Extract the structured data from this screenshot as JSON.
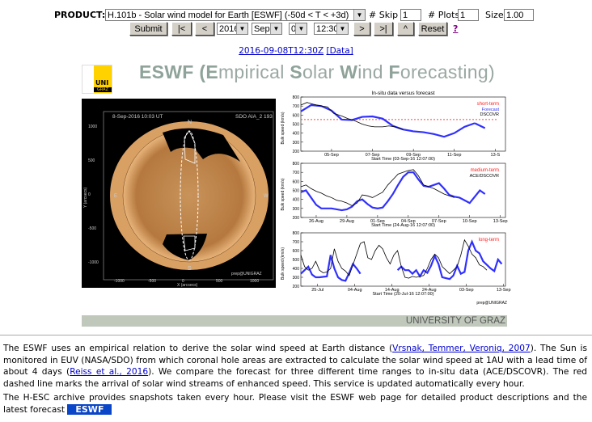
{
  "form": {
    "product_label": "PRODUCT:",
    "product_value": "H.101b - Solar wind model for Earth [ESWF] (-50d < T < +3d)",
    "skip_label": "# Skip",
    "skip_value": "1",
    "plots_label": "# Plots",
    "plots_value": "1",
    "size_label": "Size",
    "size_value": "1.00",
    "submit": "Submit",
    "first": "|<",
    "prev": "<",
    "year": "2016",
    "month": "Sep",
    "day": "08",
    "time": "12:30",
    "next": ">",
    "last": ">|",
    "up": "^",
    "reset": "Reset",
    "help": "?"
  },
  "date_link": "2016-09-08T12:30Z",
  "data_link": "[Data]",
  "header": {
    "logo_top": "UNI",
    "logo_bottom": "GRAZ",
    "title_parts": [
      "E",
      "SWF (",
      "E",
      "mpirical ",
      "S",
      "olar ",
      "W",
      "ind ",
      "F",
      "orecasting)"
    ]
  },
  "sun": {
    "timestamp": "8-Sep-2016 10:03 UT",
    "instrument": "SDO AIA_2 193",
    "north": "N",
    "south": "S",
    "east": "E",
    "west": "W",
    "credit": "prep@UNIGRAZ",
    "xlabel": "X (arcsecs)",
    "ylabel": "Y (arcsecs)",
    "yticks": [
      "1000",
      "500",
      "0",
      "-500",
      "-1000"
    ],
    "xticks": [
      "-1000",
      "-500",
      "0",
      "500",
      "1000"
    ]
  },
  "chart_data": [
    {
      "type": "line",
      "title": "In-situ data versus forecast",
      "label": "short-term",
      "legend": [
        "Forecast",
        "DSCOVR"
      ],
      "xlabel": "Start Time (03-Sep-16 12:07:00)",
      "ylabel": "Bulk speed (km/s)",
      "ylim": [
        200,
        800
      ],
      "xlim": [
        0,
        10
      ],
      "yticks": [
        "800",
        "700",
        "600",
        "500",
        "400",
        "300",
        "200"
      ],
      "xticks": [
        {
          "t": 1.5,
          "label": "05-Sep"
        },
        {
          "t": 3.5,
          "label": "07-Sep"
        },
        {
          "t": 5.5,
          "label": "09-Sep"
        },
        {
          "t": 7.5,
          "label": "11-Sep"
        },
        {
          "t": 9.5,
          "label": "13-S"
        }
      ],
      "threshold": 550,
      "series": [
        {
          "name": "Forecast",
          "color": "#3030ff",
          "x": [
            0,
            0.5,
            1,
            1.5,
            2,
            2.5,
            3,
            3.5,
            4,
            4.5,
            5,
            5.5,
            6,
            6.5,
            7,
            7.5,
            8,
            8.5
          ],
          "y": [
            640,
            710,
            700,
            650,
            550,
            545,
            580,
            585,
            560,
            480,
            440,
            420,
            410,
            390,
            360,
            400,
            470,
            510
          ]
        },
        {
          "name": "DSCOVR",
          "color": "#000000",
          "x": [
            0,
            0.3,
            0.6,
            1,
            1.3,
            1.6,
            2,
            2.3,
            2.6,
            3,
            3.3,
            3.6,
            4,
            4.3,
            4.6,
            5
          ],
          "y": [
            710,
            740,
            720,
            700,
            690,
            620,
            590,
            560,
            540,
            500,
            480,
            470,
            470,
            480,
            470,
            440
          ]
        }
      ],
      "extra_x": [
        8.5,
        9
      ],
      "extra_y": [
        510,
        455
      ]
    },
    {
      "type": "line",
      "label": "medium-term",
      "legend": [
        "ACE/DSCOVR"
      ],
      "xlabel": "Start Time (24-Aug-16 12:07:00)",
      "ylabel": "Bulk speed (km/s)",
      "ylim": [
        200,
        800
      ],
      "xlim": [
        0,
        20
      ],
      "yticks": [
        "800",
        "700",
        "600",
        "500",
        "400",
        "300",
        "200"
      ],
      "xticks": [
        {
          "t": 1.5,
          "label": "26-Aug"
        },
        {
          "t": 4.5,
          "label": "29-Aug"
        },
        {
          "t": 7.5,
          "label": "01-Sep"
        },
        {
          "t": 10.5,
          "label": "04-Sep"
        },
        {
          "t": 13.5,
          "label": "07-Sep"
        },
        {
          "t": 16.5,
          "label": "10-Sep"
        },
        {
          "t": 19.5,
          "label": "13-Sep"
        }
      ],
      "series": [
        {
          "name": "Forecast",
          "color": "#3030ff",
          "x": [
            0,
            0.5,
            1,
            1.5,
            2,
            3,
            4,
            4.5,
            5,
            5.5,
            6,
            6.5,
            7,
            7.5,
            8,
            8.5,
            9,
            9.5,
            10,
            10.5,
            11,
            11.5,
            12,
            12.5,
            13,
            13.5,
            14,
            14.5,
            15,
            15.5,
            16,
            16.5,
            17,
            17.5,
            18
          ],
          "y": [
            480,
            500,
            420,
            340,
            300,
            300,
            280,
            290,
            320,
            380,
            400,
            350,
            310,
            300,
            310,
            380,
            460,
            560,
            650,
            700,
            700,
            620,
            550,
            540,
            560,
            580,
            520,
            450,
            430,
            420,
            390,
            360,
            430,
            500,
            460
          ]
        },
        {
          "name": "ACE/DSCOVR",
          "color": "#000000",
          "x": [
            0,
            0.5,
            1,
            1.5,
            2,
            2.5,
            3,
            3.5,
            4,
            4.5,
            5,
            5.5,
            6,
            6.5,
            7,
            7.5,
            8,
            8.5,
            9,
            9.5,
            10,
            10.5,
            11,
            11.5,
            12,
            12.5,
            13,
            13.5,
            14,
            14.5,
            15
          ],
          "y": [
            540,
            560,
            520,
            490,
            470,
            440,
            420,
            390,
            380,
            360,
            330,
            360,
            450,
            440,
            420,
            450,
            480,
            560,
            620,
            680,
            700,
            720,
            730,
            660,
            560,
            540,
            520,
            490,
            460,
            440,
            420
          ]
        }
      ]
    },
    {
      "type": "line",
      "label": "long-term",
      "xlabel": "Start Time (20-Jul-16 12:07:00)",
      "ylabel": "Bulk speed (km/s)",
      "ylim": [
        200,
        800
      ],
      "xlim": [
        0,
        55
      ],
      "yticks": [
        "800",
        "700",
        "600",
        "500",
        "400",
        "300",
        "200"
      ],
      "xticks": [
        {
          "t": 4.5,
          "label": "25-Jul"
        },
        {
          "t": 14.5,
          "label": "04-Aug"
        },
        {
          "t": 24.5,
          "label": "14-Aug"
        },
        {
          "t": 34.5,
          "label": "24-Aug"
        },
        {
          "t": 44.5,
          "label": "03-Sep"
        },
        {
          "t": 54.5,
          "label": "13-Sep"
        }
      ],
      "credit": "prep@UNIGRAZ",
      "series": [
        {
          "name": "Forecast",
          "color": "#3030ff",
          "x": [
            0,
            2,
            3,
            4,
            5,
            7,
            8,
            9,
            10,
            11,
            12,
            13,
            14,
            15,
            16
          ],
          "y": [
            340,
            420,
            330,
            300,
            300,
            310,
            550,
            400,
            300,
            270,
            260,
            350,
            450,
            400,
            340
          ]
        },
        {
          "name": "Forecast",
          "color": "#3030ff",
          "x": [
            26,
            27,
            28,
            29,
            30,
            31,
            32,
            33,
            34,
            35,
            36,
            37,
            38,
            39,
            40,
            41,
            42,
            43,
            44,
            45,
            46,
            47,
            48,
            49,
            50,
            51,
            52,
            53,
            54
          ],
          "y": [
            380,
            420,
            380,
            380,
            340,
            380,
            310,
            380,
            350,
            430,
            540,
            450,
            300,
            290,
            280,
            320,
            430,
            340,
            360,
            600,
            700,
            600,
            570,
            480,
            440,
            400,
            370,
            500,
            450
          ]
        },
        {
          "name": "Observed",
          "color": "#000000",
          "x": [
            0,
            1,
            2,
            3,
            4,
            5,
            6,
            7,
            8,
            9,
            10,
            11,
            12,
            13,
            14,
            15,
            16,
            17,
            18,
            19,
            20,
            21,
            22,
            23,
            24,
            25,
            26,
            27,
            28,
            29,
            30,
            31,
            32,
            33,
            34,
            35,
            36,
            37,
            38,
            39,
            40,
            41,
            42,
            43,
            44,
            45,
            46,
            47,
            48,
            49,
            50
          ],
          "y": [
            550,
            420,
            380,
            400,
            480,
            380,
            350,
            360,
            400,
            620,
            480,
            400,
            370,
            320,
            440,
            560,
            680,
            700,
            520,
            500,
            600,
            660,
            620,
            520,
            450,
            550,
            600,
            420,
            300,
            290,
            310,
            300,
            310,
            320,
            400,
            500,
            560,
            520,
            420,
            380,
            340,
            380,
            420,
            550,
            720,
            650,
            560,
            520,
            440,
            420,
            380
          ]
        }
      ]
    }
  ],
  "footer_bar": "UNIVERSITY OF GRAZ",
  "text": {
    "p1_a": "The ESWF uses an empirical relation to derive the solar wind speed at Earth distance (",
    "p1_link1": "Vrsnak, Temmer, Veroniq, 2007",
    "p1_b": "). The Sun is monitored in EUV (NASA/SDO) from which coronal hole areas are extracted to calculate the solar wind speed at 1AU with a lead time of about 4 days (",
    "p1_link2": "Reiss et al., 2016",
    "p1_c": "). We compare the forecast for three different time ranges to in-situ data (ACE/DSCOVR). The red dashed line marks the arrival of solar wind streams of enhanced speed. This service is updated automatically every hour.",
    "p2": "The H-ESC archive provides snapshots taken every hour. Please visit the ESWF web page for detailed product descriptions and the latest forecast",
    "eswf_button": "ESWF"
  }
}
